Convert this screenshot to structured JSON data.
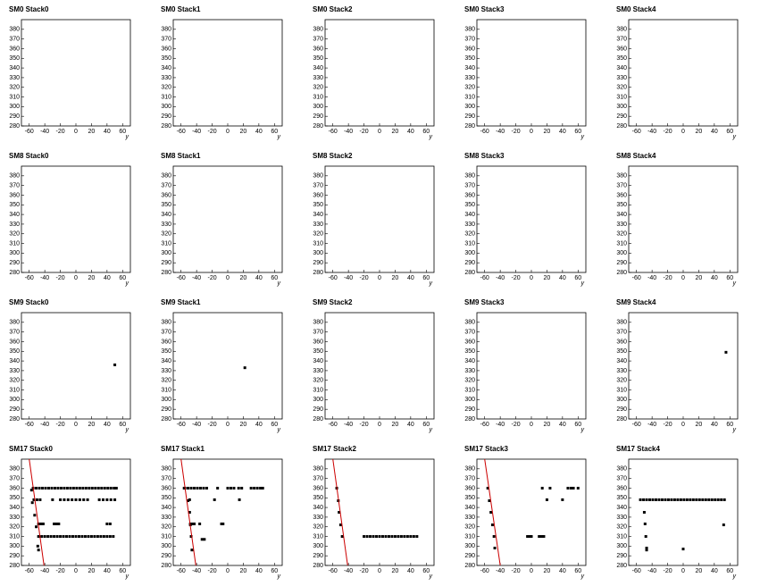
{
  "chart_data": [
    {
      "type": "scatter",
      "title": "SM0 Stack0",
      "x_label": "y",
      "xlim": [
        -70,
        70
      ],
      "ylim": [
        280,
        390
      ],
      "xticks": [
        -60,
        -40,
        -20,
        0,
        20,
        40,
        60
      ],
      "yticks": [
        280,
        290,
        300,
        310,
        320,
        330,
        340,
        350,
        360,
        370,
        380
      ],
      "color": "#000000",
      "x": [],
      "y": []
    },
    {
      "type": "scatter",
      "title": "SM0 Stack1",
      "x_label": "y",
      "xlim": [
        -70,
        70
      ],
      "ylim": [
        280,
        390
      ],
      "xticks": [
        -60,
        -40,
        -20,
        0,
        20,
        40,
        60
      ],
      "yticks": [
        280,
        290,
        300,
        310,
        320,
        330,
        340,
        350,
        360,
        370,
        380
      ],
      "color": "#000000",
      "x": [],
      "y": []
    },
    {
      "type": "scatter",
      "title": "SM0 Stack2",
      "x_label": "y",
      "xlim": [
        -70,
        70
      ],
      "ylim": [
        280,
        390
      ],
      "xticks": [
        -60,
        -40,
        -20,
        0,
        20,
        40,
        60
      ],
      "yticks": [
        280,
        290,
        300,
        310,
        320,
        330,
        340,
        350,
        360,
        370,
        380
      ],
      "color": "#000000",
      "x": [],
      "y": []
    },
    {
      "type": "scatter",
      "title": "SM0 Stack3",
      "x_label": "y",
      "xlim": [
        -70,
        70
      ],
      "ylim": [
        280,
        390
      ],
      "xticks": [
        -60,
        -40,
        -20,
        0,
        20,
        40,
        60
      ],
      "yticks": [
        280,
        290,
        300,
        310,
        320,
        330,
        340,
        350,
        360,
        370,
        380
      ],
      "color": "#000000",
      "x": [],
      "y": []
    },
    {
      "type": "scatter",
      "title": "SM0 Stack4",
      "x_label": "y",
      "xlim": [
        -70,
        70
      ],
      "ylim": [
        280,
        390
      ],
      "xticks": [
        -60,
        -40,
        -20,
        0,
        20,
        40,
        60
      ],
      "yticks": [
        280,
        290,
        300,
        310,
        320,
        330,
        340,
        350,
        360,
        370,
        380
      ],
      "color": "#000000",
      "x": [],
      "y": []
    },
    {
      "type": "scatter",
      "title": "SM8 Stack0",
      "x_label": "y",
      "xlim": [
        -70,
        70
      ],
      "ylim": [
        280,
        390
      ],
      "xticks": [
        -60,
        -40,
        -20,
        0,
        20,
        40,
        60
      ],
      "yticks": [
        280,
        290,
        300,
        310,
        320,
        330,
        340,
        350,
        360,
        370,
        380
      ],
      "color": "#000000",
      "x": [],
      "y": []
    },
    {
      "type": "scatter",
      "title": "SM8 Stack1",
      "x_label": "y",
      "xlim": [
        -70,
        70
      ],
      "ylim": [
        280,
        390
      ],
      "xticks": [
        -60,
        -40,
        -20,
        0,
        20,
        40,
        60
      ],
      "yticks": [
        280,
        290,
        300,
        310,
        320,
        330,
        340,
        350,
        360,
        370,
        380
      ],
      "color": "#000000",
      "x": [],
      "y": []
    },
    {
      "type": "scatter",
      "title": "SM8 Stack2",
      "x_label": "y",
      "xlim": [
        -70,
        70
      ],
      "ylim": [
        280,
        390
      ],
      "xticks": [
        -60,
        -40,
        -20,
        0,
        20,
        40,
        60
      ],
      "yticks": [
        280,
        290,
        300,
        310,
        320,
        330,
        340,
        350,
        360,
        370,
        380
      ],
      "color": "#000000",
      "x": [],
      "y": []
    },
    {
      "type": "scatter",
      "title": "SM8 Stack3",
      "x_label": "y",
      "xlim": [
        -70,
        70
      ],
      "ylim": [
        280,
        390
      ],
      "xticks": [
        -60,
        -40,
        -20,
        0,
        20,
        40,
        60
      ],
      "yticks": [
        280,
        290,
        300,
        310,
        320,
        330,
        340,
        350,
        360,
        370,
        380
      ],
      "color": "#000000",
      "x": [],
      "y": []
    },
    {
      "type": "scatter",
      "title": "SM8 Stack4",
      "x_label": "y",
      "xlim": [
        -70,
        70
      ],
      "ylim": [
        280,
        390
      ],
      "xticks": [
        -60,
        -40,
        -20,
        0,
        20,
        40,
        60
      ],
      "yticks": [
        280,
        290,
        300,
        310,
        320,
        330,
        340,
        350,
        360,
        370,
        380
      ],
      "color": "#000000",
      "x": [],
      "y": []
    },
    {
      "type": "scatter",
      "title": "SM9 Stack0",
      "x_label": "y",
      "xlim": [
        -70,
        70
      ],
      "ylim": [
        280,
        390
      ],
      "xticks": [
        -60,
        -40,
        -20,
        0,
        20,
        40,
        60
      ],
      "yticks": [
        280,
        290,
        300,
        310,
        320,
        330,
        340,
        350,
        360,
        370,
        380
      ],
      "color": "#000000",
      "x": [
        50
      ],
      "y": [
        336
      ]
    },
    {
      "type": "scatter",
      "title": "SM9 Stack1",
      "x_label": "y",
      "xlim": [
        -70,
        70
      ],
      "ylim": [
        280,
        390
      ],
      "xticks": [
        -60,
        -40,
        -20,
        0,
        20,
        40,
        60
      ],
      "yticks": [
        280,
        290,
        300,
        310,
        320,
        330,
        340,
        350,
        360,
        370,
        380
      ],
      "color": "#000000",
      "x": [
        22
      ],
      "y": [
        333
      ]
    },
    {
      "type": "scatter",
      "title": "SM9 Stack2",
      "x_label": "y",
      "xlim": [
        -70,
        70
      ],
      "ylim": [
        280,
        390
      ],
      "xticks": [
        -60,
        -40,
        -20,
        0,
        20,
        40,
        60
      ],
      "yticks": [
        280,
        290,
        300,
        310,
        320,
        330,
        340,
        350,
        360,
        370,
        380
      ],
      "color": "#000000",
      "x": [],
      "y": []
    },
    {
      "type": "scatter",
      "title": "SM9 Stack3",
      "x_label": "y",
      "xlim": [
        -70,
        70
      ],
      "ylim": [
        280,
        390
      ],
      "xticks": [
        -60,
        -40,
        -20,
        0,
        20,
        40,
        60
      ],
      "yticks": [
        280,
        290,
        300,
        310,
        320,
        330,
        340,
        350,
        360,
        370,
        380
      ],
      "color": "#000000",
      "x": [],
      "y": []
    },
    {
      "type": "scatter",
      "title": "SM9 Stack4",
      "x_label": "y",
      "xlim": [
        -70,
        70
      ],
      "ylim": [
        280,
        390
      ],
      "xticks": [
        -60,
        -40,
        -20,
        0,
        20,
        40,
        60
      ],
      "yticks": [
        280,
        290,
        300,
        310,
        320,
        330,
        340,
        350,
        360,
        370,
        380
      ],
      "color": "#000000",
      "x": [
        55
      ],
      "y": [
        349
      ]
    },
    {
      "type": "scatter",
      "title": "SM17 Stack0",
      "x_label": "y",
      "xlim": [
        -70,
        70
      ],
      "ylim": [
        280,
        390
      ],
      "xticks": [
        -60,
        -40,
        -20,
        0,
        20,
        40,
        60
      ],
      "yticks": [
        280,
        290,
        300,
        310,
        320,
        330,
        340,
        350,
        360,
        370,
        380
      ],
      "color": "#000000",
      "x": [
        -55,
        -51,
        -47,
        -43,
        -39,
        -35,
        -31,
        -27,
        -23,
        -19,
        -15,
        -11,
        -7,
        -3,
        1,
        5,
        9,
        13,
        17,
        21,
        25,
        29,
        33,
        37,
        41,
        45,
        49,
        52,
        -48,
        -44,
        -40,
        -36,
        -32,
        -28,
        -24,
        -20,
        -16,
        -12,
        -8,
        -4,
        0,
        4,
        8,
        12,
        16,
        20,
        24,
        28,
        32,
        36,
        40,
        44,
        48,
        -54,
        -50,
        -46,
        -30,
        -20,
        -15,
        -10,
        -5,
        0,
        5,
        10,
        15,
        30,
        35,
        40,
        45,
        50,
        -48,
        -45,
        -42,
        -28,
        -25,
        -22,
        40,
        44,
        -57,
        -56,
        -53,
        -51,
        -49,
        -48
      ],
      "y": [
        360,
        360,
        360,
        360,
        360,
        360,
        360,
        360,
        360,
        360,
        360,
        360,
        360,
        360,
        360,
        360,
        360,
        360,
        360,
        360,
        360,
        360,
        360,
        360,
        360,
        360,
        360,
        360,
        310,
        310,
        310,
        310,
        310,
        310,
        310,
        310,
        310,
        310,
        310,
        310,
        310,
        310,
        310,
        310,
        310,
        310,
        310,
        310,
        310,
        310,
        310,
        310,
        310,
        348,
        348,
        348,
        348,
        348,
        348,
        348,
        348,
        348,
        348,
        348,
        348,
        348,
        348,
        348,
        348,
        348,
        323,
        323,
        323,
        323,
        323,
        323,
        323,
        323,
        358,
        345,
        332,
        320,
        300,
        296
      ],
      "lines": [
        {
          "x": [
            -60,
            -41
          ],
          "y": [
            390,
            280
          ],
          "color": "#cc0000"
        }
      ]
    },
    {
      "type": "scatter",
      "title": "SM17 Stack1",
      "x_label": "y",
      "xlim": [
        -70,
        70
      ],
      "ylim": [
        280,
        390
      ],
      "xticks": [
        -60,
        -40,
        -20,
        0,
        20,
        40,
        60
      ],
      "yticks": [
        280,
        290,
        300,
        310,
        320,
        330,
        340,
        350,
        360,
        370,
        380
      ],
      "color": "#000000",
      "x": [
        -55,
        -51,
        -47,
        -43,
        -39,
        -35,
        -31,
        -27,
        -13,
        0,
        4,
        8,
        14,
        18,
        30,
        34,
        38,
        42,
        45,
        -49,
        -17,
        15,
        -48,
        -45,
        -43,
        -36,
        -8,
        -6,
        -33,
        -30,
        -56,
        -51,
        -49,
        -48,
        -47,
        -46
      ],
      "y": [
        360,
        360,
        360,
        360,
        360,
        360,
        360,
        360,
        360,
        360,
        360,
        360,
        360,
        360,
        360,
        360,
        360,
        360,
        360,
        348,
        348,
        348,
        323,
        323,
        323,
        323,
        323,
        323,
        307,
        307,
        360,
        347,
        335,
        322,
        310,
        296
      ],
      "lines": [
        {
          "x": [
            -60,
            -41
          ],
          "y": [
            390,
            280
          ],
          "color": "#cc0000"
        }
      ]
    },
    {
      "type": "scatter",
      "title": "SM17 Stack2",
      "x_label": "y",
      "xlim": [
        -70,
        70
      ],
      "ylim": [
        280,
        390
      ],
      "xticks": [
        -60,
        -40,
        -20,
        0,
        20,
        40,
        60
      ],
      "yticks": [
        280,
        290,
        300,
        310,
        320,
        330,
        340,
        350,
        360,
        370,
        380
      ],
      "color": "#000000",
      "x": [
        -20,
        -16,
        -12,
        -8,
        -4,
        0,
        4,
        8,
        12,
        16,
        20,
        24,
        28,
        32,
        36,
        40,
        44,
        48,
        -55,
        -53,
        -52,
        -50,
        -48
      ],
      "y": [
        310,
        310,
        310,
        310,
        310,
        310,
        310,
        310,
        310,
        310,
        310,
        310,
        310,
        310,
        310,
        310,
        310,
        310,
        360,
        347,
        335,
        322,
        310
      ],
      "lines": [
        {
          "x": [
            -60,
            -41
          ],
          "y": [
            390,
            280
          ],
          "color": "#cc0000"
        }
      ]
    },
    {
      "type": "scatter",
      "title": "SM17 Stack3",
      "x_label": "y",
      "xlim": [
        -70,
        70
      ],
      "ylim": [
        280,
        390
      ],
      "xticks": [
        -60,
        -40,
        -20,
        0,
        20,
        40,
        60
      ],
      "yticks": [
        280,
        290,
        300,
        310,
        320,
        330,
        340,
        350,
        360,
        370,
        380
      ],
      "color": "#000000",
      "x": [
        -56,
        -54,
        -52,
        -50,
        -48,
        -47,
        -5,
        -2,
        0,
        10,
        13,
        16,
        14,
        24,
        47,
        51,
        54,
        60,
        20,
        40
      ],
      "y": [
        360,
        347,
        335,
        322,
        310,
        298,
        310,
        310,
        310,
        310,
        310,
        310,
        360,
        360,
        360,
        360,
        360,
        360,
        348,
        348
      ],
      "lines": [
        {
          "x": [
            -60,
            -40
          ],
          "y": [
            390,
            280
          ],
          "color": "#cc0000"
        }
      ]
    },
    {
      "type": "scatter",
      "title": "SM17 Stack4",
      "x_label": "y",
      "xlim": [
        -70,
        70
      ],
      "ylim": [
        280,
        390
      ],
      "xticks": [
        -60,
        -40,
        -20,
        0,
        20,
        40,
        60
      ],
      "yticks": [
        280,
        290,
        300,
        310,
        320,
        330,
        340,
        350,
        360,
        370,
        380
      ],
      "color": "#000000",
      "x": [
        -55,
        -51,
        -47,
        -43,
        -39,
        -35,
        -31,
        -27,
        -23,
        -19,
        -15,
        -11,
        -7,
        -3,
        1,
        5,
        9,
        13,
        17,
        21,
        25,
        29,
        33,
        37,
        41,
        45,
        49,
        53,
        -50,
        -49,
        -48,
        -47,
        -47,
        0,
        52
      ],
      "y": [
        348,
        348,
        348,
        348,
        348,
        348,
        348,
        348,
        348,
        348,
        348,
        348,
        348,
        348,
        348,
        348,
        348,
        348,
        348,
        348,
        348,
        348,
        348,
        348,
        348,
        348,
        348,
        348,
        335,
        323,
        310,
        298,
        296,
        297,
        322
      ]
    }
  ]
}
